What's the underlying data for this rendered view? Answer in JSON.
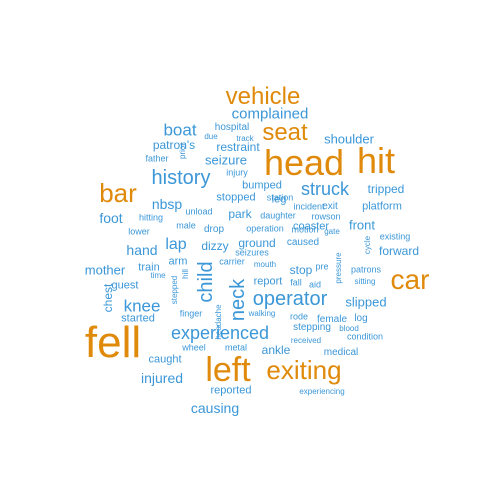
{
  "colors": {
    "orange": "#e08a0b",
    "blue": "#3b97d8"
  },
  "words": [
    {
      "text": "fell",
      "color": "orange"
    },
    {
      "text": "head",
      "color": "orange"
    },
    {
      "text": "hit",
      "color": "orange"
    },
    {
      "text": "left",
      "color": "orange"
    },
    {
      "text": "car",
      "color": "orange"
    },
    {
      "text": "exiting",
      "color": "orange"
    },
    {
      "text": "bar",
      "color": "orange"
    },
    {
      "text": "vehicle",
      "color": "orange"
    },
    {
      "text": "seat",
      "color": "orange"
    },
    {
      "text": "history",
      "color": "blue"
    },
    {
      "text": "operator",
      "color": "blue"
    },
    {
      "text": "experienced",
      "color": "blue"
    },
    {
      "text": "struck",
      "color": "blue"
    },
    {
      "text": "neck",
      "color": "blue"
    },
    {
      "text": "child",
      "color": "blue"
    },
    {
      "text": "boat",
      "color": "blue"
    },
    {
      "text": "complained",
      "color": "blue"
    },
    {
      "text": "knee",
      "color": "blue"
    },
    {
      "text": "injured",
      "color": "blue"
    },
    {
      "text": "causing",
      "color": "blue"
    },
    {
      "text": "lap",
      "color": "blue"
    },
    {
      "text": "shoulder",
      "color": "blue"
    },
    {
      "text": "slipped",
      "color": "blue"
    },
    {
      "text": "front",
      "color": "blue"
    },
    {
      "text": "hand",
      "color": "blue"
    },
    {
      "text": "mother",
      "color": "blue"
    },
    {
      "text": "foot",
      "color": "blue"
    },
    {
      "text": "nbsp",
      "color": "blue"
    },
    {
      "text": "patron's",
      "color": "blue"
    },
    {
      "text": "seizure",
      "color": "blue"
    },
    {
      "text": "restraint",
      "color": "blue"
    },
    {
      "text": "chest",
      "color": "blue"
    },
    {
      "text": "park",
      "color": "blue"
    },
    {
      "text": "forward",
      "color": "blue"
    },
    {
      "text": "tripped",
      "color": "blue"
    },
    {
      "text": "platform",
      "color": "blue"
    },
    {
      "text": "ankle",
      "color": "blue"
    },
    {
      "text": "coaster",
      "color": "blue"
    },
    {
      "text": "ground",
      "color": "blue"
    },
    {
      "text": "stop",
      "color": "blue"
    },
    {
      "text": "dizzy",
      "color": "blue"
    },
    {
      "text": "arm",
      "color": "blue"
    },
    {
      "text": "train",
      "color": "blue"
    },
    {
      "text": "guest",
      "color": "blue"
    },
    {
      "text": "started",
      "color": "blue"
    },
    {
      "text": "caught",
      "color": "blue"
    },
    {
      "text": "reported",
      "color": "blue"
    },
    {
      "text": "medical",
      "color": "blue"
    },
    {
      "text": "report",
      "color": "blue"
    },
    {
      "text": "stopped",
      "color": "blue"
    },
    {
      "text": "bumped",
      "color": "blue"
    },
    {
      "text": "leg",
      "color": "blue"
    },
    {
      "text": "hospital",
      "color": "blue"
    },
    {
      "text": "father",
      "color": "blue"
    },
    {
      "text": "hitting",
      "color": "blue"
    },
    {
      "text": "lower",
      "color": "blue"
    },
    {
      "text": "drop",
      "color": "blue"
    },
    {
      "text": "male",
      "color": "blue"
    },
    {
      "text": "unload",
      "color": "blue"
    },
    {
      "text": "station",
      "color": "blue"
    },
    {
      "text": "incident",
      "color": "blue"
    },
    {
      "text": "daughter",
      "color": "blue"
    },
    {
      "text": "rowson",
      "color": "blue"
    },
    {
      "text": "exit",
      "color": "blue"
    },
    {
      "text": "operation",
      "color": "blue"
    },
    {
      "text": "motion",
      "color": "blue"
    },
    {
      "text": "gate",
      "color": "blue"
    },
    {
      "text": "caused",
      "color": "blue"
    },
    {
      "text": "existing",
      "color": "blue"
    },
    {
      "text": "patrons",
      "color": "blue"
    },
    {
      "text": "sitting",
      "color": "blue"
    },
    {
      "text": "pre",
      "color": "blue"
    },
    {
      "text": "aid",
      "color": "blue"
    },
    {
      "text": "fall",
      "color": "blue"
    },
    {
      "text": "female",
      "color": "blue"
    },
    {
      "text": "log",
      "color": "blue"
    },
    {
      "text": "rode",
      "color": "blue"
    },
    {
      "text": "stepping",
      "color": "blue"
    },
    {
      "text": "blood",
      "color": "blue"
    },
    {
      "text": "condition",
      "color": "blue"
    },
    {
      "text": "received",
      "color": "blue"
    },
    {
      "text": "walking",
      "color": "blue"
    },
    {
      "text": "experiencing",
      "color": "blue"
    },
    {
      "text": "wheel",
      "color": "blue"
    },
    {
      "text": "metal",
      "color": "blue"
    },
    {
      "text": "finger",
      "color": "blue"
    },
    {
      "text": "stepped",
      "color": "blue"
    },
    {
      "text": "headache",
      "color": "blue"
    },
    {
      "text": "hill",
      "color": "blue"
    },
    {
      "text": "time",
      "color": "blue"
    },
    {
      "text": "carrier",
      "color": "blue"
    },
    {
      "text": "mouth",
      "color": "blue"
    },
    {
      "text": "seizures",
      "color": "blue"
    },
    {
      "text": "injury",
      "color": "blue"
    },
    {
      "text": "due",
      "color": "blue"
    },
    {
      "text": "track",
      "color": "blue"
    },
    {
      "text": "prior",
      "color": "blue"
    },
    {
      "text": "pressure",
      "color": "blue"
    },
    {
      "text": "cycle",
      "color": "blue"
    }
  ]
}
